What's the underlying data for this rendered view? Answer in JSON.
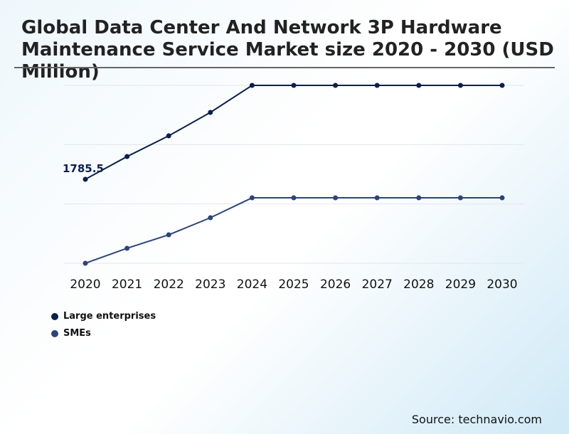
{
  "chart_data": {
    "type": "line",
    "title": "Global Data Center And Network 3P Hardware Maintenance Service Market size 2020 - 2030 (USD Million)",
    "xlabel": "",
    "ylabel": "",
    "x": [
      "2020",
      "2021",
      "2022",
      "2023",
      "2024",
      "2025",
      "2026",
      "2027",
      "2028",
      "2029",
      "2030"
    ],
    "series": [
      {
        "name": "Large enterprises",
        "color": "#0c1f4b",
        "values": [
          1785.5,
          1998,
          2192,
          2411,
          2664,
          2664,
          2664,
          2664,
          2664,
          2664,
          2664
        ]
      },
      {
        "name": "SMEs",
        "color": "#2d4479",
        "values": [
          1000,
          1140,
          1266,
          1426,
          1612,
          1612,
          1612,
          1612,
          1612,
          1612,
          1612
        ]
      }
    ],
    "data_labels": [
      {
        "series": 0,
        "x": "2020",
        "text": "1785.5"
      }
    ],
    "ylim": [
      1000,
      2664
    ],
    "grid": true,
    "legend": "bottom-left"
  },
  "source": "Source: technavio.com"
}
